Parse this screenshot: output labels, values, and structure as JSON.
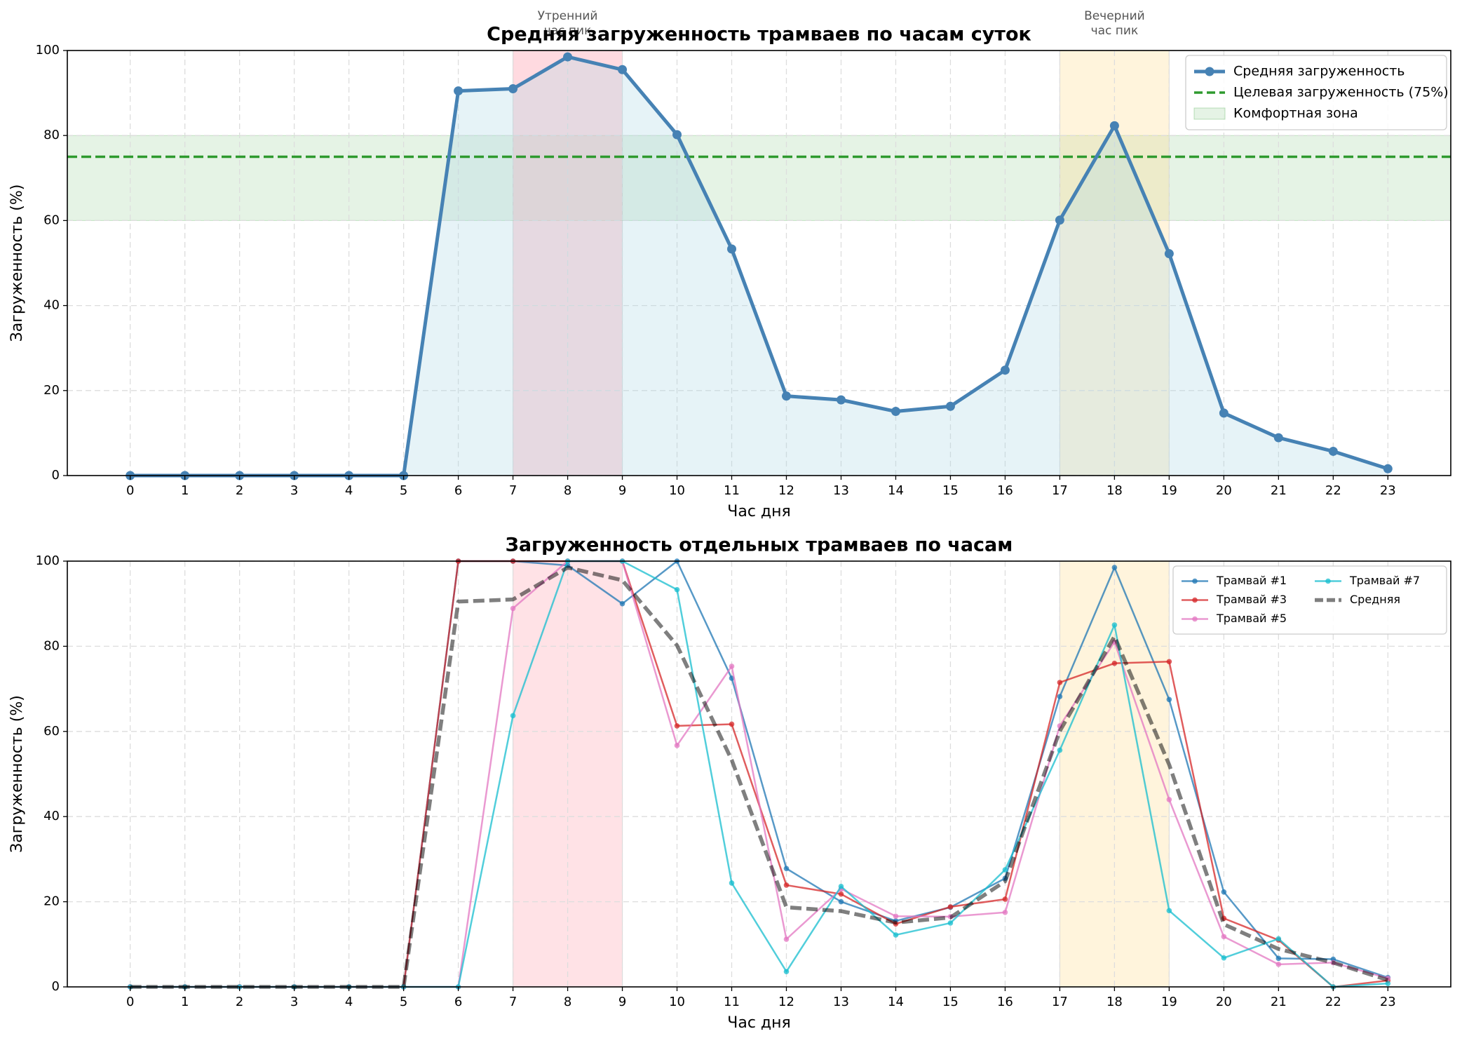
{
  "chart_data": [
    {
      "type": "line",
      "title": "Средняя загруженность трамваев по часам суток",
      "xlabel": "Час дня",
      "ylabel": "Загруженность (%)",
      "x": [
        0,
        1,
        2,
        3,
        4,
        5,
        6,
        7,
        8,
        9,
        10,
        11,
        12,
        13,
        14,
        15,
        16,
        17,
        18,
        19,
        20,
        21,
        22,
        23
      ],
      "xticks": [
        0,
        1,
        2,
        3,
        4,
        5,
        6,
        7,
        8,
        9,
        10,
        11,
        12,
        13,
        14,
        15,
        16,
        17,
        18,
        19,
        20,
        21,
        22,
        23
      ],
      "xlim": [
        -1.15,
        24.15
      ],
      "ylim": [
        0,
        100
      ],
      "yticks": [
        0,
        20,
        40,
        60,
        80,
        100
      ],
      "grid": true,
      "area_fill": {
        "color": "#add8e6",
        "opacity": 0.3
      },
      "series": [
        {
          "name": "Средняя загруженность",
          "color": "#4682b4",
          "width": 5,
          "marker": 6.5,
          "opacity": 1,
          "values": [
            0,
            0,
            0,
            0,
            0,
            0,
            90.5,
            91,
            98.5,
            95.5,
            80.2,
            53.3,
            18.7,
            17.8,
            15.1,
            16.3,
            24.8,
            60.1,
            82.3,
            52.2,
            14.7,
            8.9,
            5.7,
            1.6
          ]
        }
      ],
      "target": {
        "name": "Целевая загруженность (75%)",
        "value": 75,
        "color": "#2e9a2e"
      },
      "band": {
        "name": "Комфортная зона",
        "range": [
          60,
          80
        ],
        "color": "#2ca02c",
        "opacity": 0.12
      },
      "peak_zones": [
        {
          "range": [
            7,
            9
          ],
          "color": "#ffb6c1",
          "opacity": 0.5,
          "label_lines": [
            "Утренний",
            "час пик"
          ]
        },
        {
          "range": [
            17,
            19
          ],
          "color": "#ffd98a",
          "opacity": 0.3,
          "label_lines": [
            "Вечерний",
            "час пик"
          ]
        }
      ],
      "legend": {
        "loc": "upper right",
        "columns": 1
      }
    },
    {
      "type": "line",
      "title": "Загруженность отдельных трамваев по часам",
      "xlabel": "Час дня",
      "ylabel": "Загруженность (%)",
      "x": [
        0,
        1,
        2,
        3,
        4,
        5,
        6,
        7,
        8,
        9,
        10,
        11,
        12,
        13,
        14,
        15,
        16,
        17,
        18,
        19,
        20,
        21,
        22,
        23
      ],
      "xticks": [
        0,
        1,
        2,
        3,
        4,
        5,
        6,
        7,
        8,
        9,
        10,
        11,
        12,
        13,
        14,
        15,
        16,
        17,
        18,
        19,
        20,
        21,
        22,
        23
      ],
      "xlim": [
        -1.15,
        24.15
      ],
      "ylim": [
        0,
        100
      ],
      "yticks": [
        0,
        20,
        40,
        60,
        80,
        100
      ],
      "grid": true,
      "series": [
        {
          "name": "Трамвай #1",
          "color": "#1f77b4",
          "width": 2.5,
          "marker": 3.8,
          "opacity": 0.75,
          "values": [
            0,
            0,
            0,
            0,
            0,
            0,
            100,
            100,
            99,
            90,
            100,
            72.5,
            27.8,
            20,
            15.5,
            18.7,
            25.5,
            68.2,
            98.5,
            67.5,
            22.3,
            6.7,
            6.5,
            2.2
          ]
        },
        {
          "name": "Трамвай #3",
          "color": "#d62728",
          "width": 2.5,
          "marker": 3.8,
          "opacity": 0.75,
          "values": [
            0,
            0,
            0,
            0,
            0,
            0,
            100,
            100,
            100,
            100,
            61.3,
            61.7,
            23.9,
            21.8,
            14.8,
            18.8,
            20.6,
            71.5,
            76,
            76.4,
            16.1,
            11,
            0,
            1.5
          ]
        },
        {
          "name": "Трамвай #5",
          "color": "#e377c2",
          "width": 2.5,
          "marker": 3.8,
          "opacity": 0.75,
          "values": [
            0,
            0,
            0,
            0,
            0,
            0,
            0,
            88.9,
            100,
            100,
            56.7,
            75.3,
            11.2,
            23,
            16.6,
            16.5,
            17.5,
            61.3,
            81,
            44,
            11.8,
            5.3,
            5.7,
            2
          ]
        },
        {
          "name": "Трамвай #7",
          "color": "#17becf",
          "width": 2.5,
          "marker": 3.8,
          "opacity": 0.75,
          "values": [
            0,
            0,
            0,
            0,
            0,
            0,
            0,
            63.7,
            100,
            100,
            93.3,
            24.4,
            3.6,
            23.6,
            12.2,
            15,
            27.5,
            55.6,
            85,
            17.9,
            6.8,
            11.3,
            0,
            0.8
          ]
        },
        {
          "name": "Средняя",
          "color": "#000000",
          "width": 5.5,
          "marker": 0,
          "opacity": 0.5,
          "dash": true,
          "values": [
            0,
            0,
            0,
            0,
            0,
            0,
            90.5,
            91,
            98.5,
            95.5,
            80.2,
            53.3,
            18.7,
            17.8,
            15.1,
            16.3,
            24.8,
            60.1,
            82.3,
            52.2,
            14.7,
            8.9,
            5.7,
            1.6
          ]
        }
      ],
      "peak_zones": [
        {
          "range": [
            7,
            9
          ],
          "color": "#ffb6c1",
          "opacity": 0.4
        },
        {
          "range": [
            17,
            19
          ],
          "color": "#ffd98a",
          "opacity": 0.3
        }
      ],
      "legend": {
        "loc": "upper right",
        "columns": 2
      }
    }
  ]
}
